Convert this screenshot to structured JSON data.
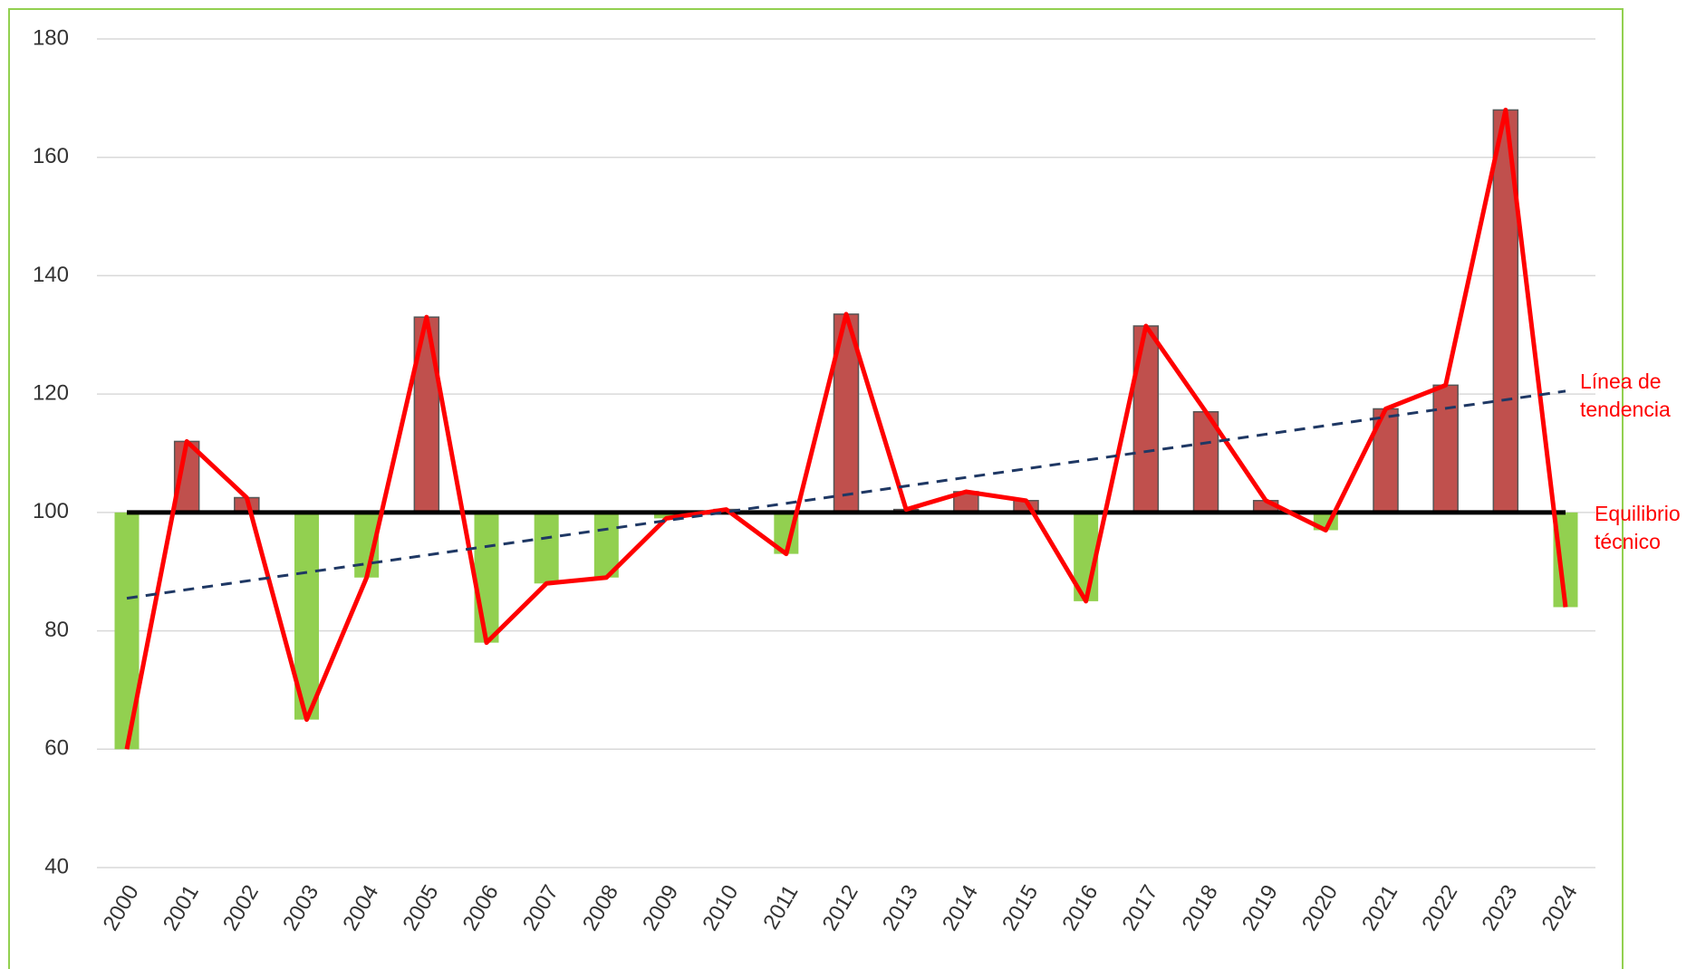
{
  "chart_data": {
    "type": "floating_bar_line",
    "categories": [
      "2000",
      "2001",
      "2002",
      "2003",
      "2004",
      "2005",
      "2006",
      "2007",
      "2008",
      "2009",
      "2010",
      "2011",
      "2012",
      "2013",
      "2014",
      "2015",
      "2016",
      "2017",
      "2018",
      "2019",
      "2020",
      "2021",
      "2022",
      "2023",
      "2024"
    ],
    "values": [
      60,
      112,
      102.5,
      65,
      89,
      133,
      78,
      88,
      89,
      99,
      100.5,
      93,
      133.5,
      100.5,
      103.5,
      102,
      85,
      131.5,
      117,
      102,
      97,
      117.5,
      121.5,
      168,
      84
    ],
    "baseline": 100,
    "up_color": "#c0504d",
    "down_color": "#92d050",
    "line_color": "#ff0000",
    "trendline": {
      "start": 85.5,
      "end": 120.5,
      "color": "#1f3864"
    },
    "ylim": [
      40,
      180
    ],
    "yticks": [
      40,
      60,
      80,
      100,
      120,
      140,
      160,
      180
    ],
    "grid": true,
    "annotations": {
      "trend": [
        "Línea de",
        "tendencia"
      ],
      "baseline": [
        "Equilibrio",
        "técnico"
      ]
    }
  }
}
